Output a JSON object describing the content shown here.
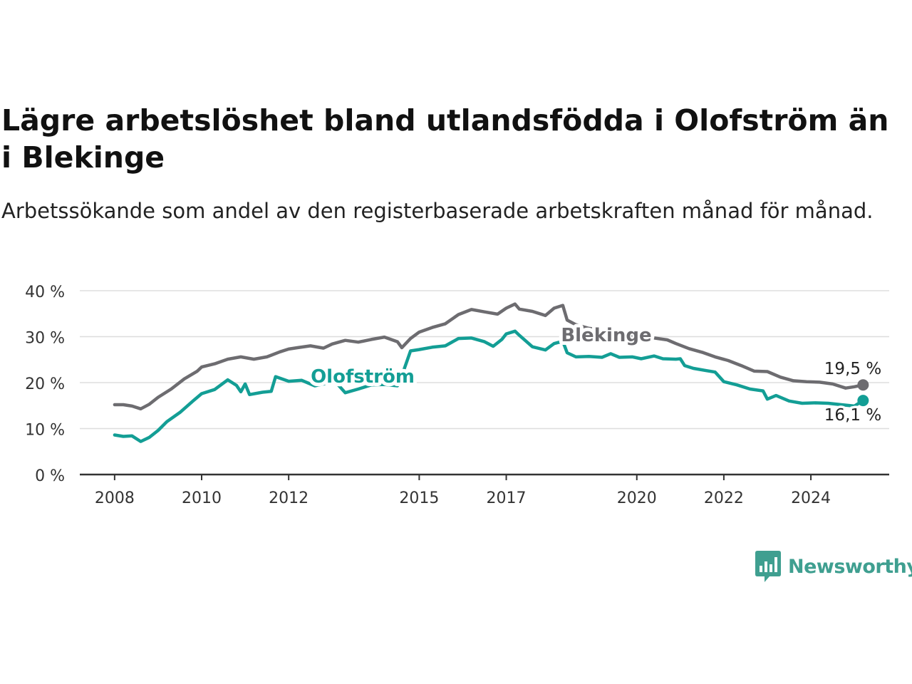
{
  "title": "Lägre arbetslöshet bland utlandsfödda i Olofström än i Blekinge",
  "subtitle": "Arbetssökande som andel av den registerbaserade arbetskraften månad för månad.",
  "brand": {
    "name": "Newsworthy",
    "color": "#3f9f90",
    "icon": "chart-bubble-icon"
  },
  "colors": {
    "olofstrom": "#139e95",
    "blekinge": "#6d6c70",
    "grid": "#dddddd",
    "axis": "#333333"
  },
  "chart_data": {
    "type": "line",
    "y_ticks": [
      "0 %",
      "10 %",
      "20 %",
      "30 %",
      "40 %"
    ],
    "y_tick_values": [
      0,
      10,
      20,
      30,
      40
    ],
    "ylim": [
      0,
      40
    ],
    "x_ticks": [
      "2008",
      "2010",
      "2012",
      "2015",
      "2017",
      "2020",
      "2022",
      "2024"
    ],
    "x_tick_values": [
      2008,
      2010,
      2012,
      2015,
      2017,
      2020,
      2022,
      2024
    ],
    "xlim": [
      2007.2,
      2025.8
    ],
    "grid": true,
    "series": [
      {
        "name": "Blekinge",
        "key": "blekinge",
        "end_label": "19,5 %",
        "points": [
          [
            2008.0,
            15.2
          ],
          [
            2008.2,
            15.2
          ],
          [
            2008.4,
            14.9
          ],
          [
            2008.6,
            14.3
          ],
          [
            2008.8,
            15.3
          ],
          [
            2009.0,
            16.8
          ],
          [
            2009.3,
            18.6
          ],
          [
            2009.6,
            20.8
          ],
          [
            2009.9,
            22.5
          ],
          [
            2010.0,
            23.4
          ],
          [
            2010.3,
            24.1
          ],
          [
            2010.6,
            25.1
          ],
          [
            2010.9,
            25.6
          ],
          [
            2011.2,
            25.1
          ],
          [
            2011.5,
            25.6
          ],
          [
            2011.8,
            26.7
          ],
          [
            2012.0,
            27.3
          ],
          [
            2012.2,
            27.6
          ],
          [
            2012.5,
            28.0
          ],
          [
            2012.8,
            27.5
          ],
          [
            2013.0,
            28.4
          ],
          [
            2013.3,
            29.2
          ],
          [
            2013.6,
            28.8
          ],
          [
            2013.9,
            29.4
          ],
          [
            2014.2,
            29.9
          ],
          [
            2014.5,
            28.9
          ],
          [
            2014.6,
            27.6
          ],
          [
            2014.8,
            29.6
          ],
          [
            2015.0,
            31.0
          ],
          [
            2015.3,
            32.0
          ],
          [
            2015.6,
            32.8
          ],
          [
            2015.9,
            34.8
          ],
          [
            2016.2,
            35.9
          ],
          [
            2016.5,
            35.4
          ],
          [
            2016.8,
            34.9
          ],
          [
            2017.0,
            36.2
          ],
          [
            2017.2,
            37.1
          ],
          [
            2017.3,
            36.0
          ],
          [
            2017.6,
            35.5
          ],
          [
            2017.9,
            34.6
          ],
          [
            2018.1,
            36.2
          ],
          [
            2018.3,
            36.8
          ],
          [
            2018.4,
            33.6
          ],
          [
            2018.6,
            32.6
          ],
          [
            2018.9,
            31.8
          ],
          [
            2019.2,
            31.5
          ],
          [
            2019.5,
            31.0
          ],
          [
            2019.8,
            30.6
          ],
          [
            2020.1,
            30.0
          ],
          [
            2020.4,
            29.7
          ],
          [
            2020.7,
            29.3
          ],
          [
            2020.9,
            28.5
          ],
          [
            2021.2,
            27.4
          ],
          [
            2021.5,
            26.6
          ],
          [
            2021.8,
            25.6
          ],
          [
            2022.1,
            24.8
          ],
          [
            2022.4,
            23.7
          ],
          [
            2022.7,
            22.5
          ],
          [
            2023.0,
            22.4
          ],
          [
            2023.3,
            21.2
          ],
          [
            2023.6,
            20.4
          ],
          [
            2023.9,
            20.2
          ],
          [
            2024.2,
            20.1
          ],
          [
            2024.5,
            19.7
          ],
          [
            2024.8,
            18.8
          ],
          [
            2025.0,
            19.1
          ],
          [
            2025.2,
            19.5
          ]
        ]
      },
      {
        "name": "Olofström",
        "key": "olofstrom",
        "end_label": "16,1 %",
        "points": [
          [
            2008.0,
            8.6
          ],
          [
            2008.2,
            8.3
          ],
          [
            2008.4,
            8.4
          ],
          [
            2008.6,
            7.2
          ],
          [
            2008.8,
            8.1
          ],
          [
            2009.0,
            9.6
          ],
          [
            2009.2,
            11.5
          ],
          [
            2009.5,
            13.5
          ],
          [
            2009.8,
            16.0
          ],
          [
            2010.0,
            17.6
          ],
          [
            2010.3,
            18.5
          ],
          [
            2010.6,
            20.6
          ],
          [
            2010.8,
            19.4
          ],
          [
            2010.9,
            18.0
          ],
          [
            2011.0,
            19.7
          ],
          [
            2011.1,
            17.4
          ],
          [
            2011.4,
            17.9
          ],
          [
            2011.6,
            18.1
          ],
          [
            2011.7,
            21.3
          ],
          [
            2012.0,
            20.3
          ],
          [
            2012.3,
            20.5
          ],
          [
            2012.6,
            19.3
          ],
          [
            2012.9,
            19.9
          ],
          [
            2013.1,
            19.9
          ],
          [
            2013.3,
            17.8
          ],
          [
            2013.6,
            18.6
          ],
          [
            2013.9,
            19.5
          ],
          [
            2014.2,
            19.6
          ],
          [
            2014.5,
            19.3
          ],
          [
            2014.6,
            21.5
          ],
          [
            2014.8,
            26.9
          ],
          [
            2015.0,
            27.2
          ],
          [
            2015.3,
            27.7
          ],
          [
            2015.6,
            28.0
          ],
          [
            2015.9,
            29.6
          ],
          [
            2016.2,
            29.7
          ],
          [
            2016.5,
            28.9
          ],
          [
            2016.7,
            27.9
          ],
          [
            2016.9,
            29.4
          ],
          [
            2017.0,
            30.6
          ],
          [
            2017.2,
            31.2
          ],
          [
            2017.3,
            30.3
          ],
          [
            2017.6,
            27.8
          ],
          [
            2017.9,
            27.1
          ],
          [
            2018.1,
            28.5
          ],
          [
            2018.3,
            29.0
          ],
          [
            2018.4,
            26.5
          ],
          [
            2018.6,
            25.6
          ],
          [
            2018.9,
            25.7
          ],
          [
            2019.2,
            25.5
          ],
          [
            2019.4,
            26.3
          ],
          [
            2019.6,
            25.5
          ],
          [
            2019.9,
            25.6
          ],
          [
            2020.1,
            25.2
          ],
          [
            2020.4,
            25.8
          ],
          [
            2020.6,
            25.2
          ],
          [
            2020.9,
            25.1
          ],
          [
            2021.0,
            25.2
          ],
          [
            2021.1,
            23.7
          ],
          [
            2021.3,
            23.1
          ],
          [
            2021.6,
            22.6
          ],
          [
            2021.8,
            22.3
          ],
          [
            2022.0,
            20.2
          ],
          [
            2022.3,
            19.5
          ],
          [
            2022.6,
            18.6
          ],
          [
            2022.9,
            18.2
          ],
          [
            2023.0,
            16.4
          ],
          [
            2023.2,
            17.2
          ],
          [
            2023.5,
            16.0
          ],
          [
            2023.8,
            15.5
          ],
          [
            2024.1,
            15.6
          ],
          [
            2024.4,
            15.5
          ],
          [
            2024.7,
            15.2
          ],
          [
            2025.0,
            14.9
          ],
          [
            2025.2,
            16.1
          ]
        ]
      }
    ]
  }
}
